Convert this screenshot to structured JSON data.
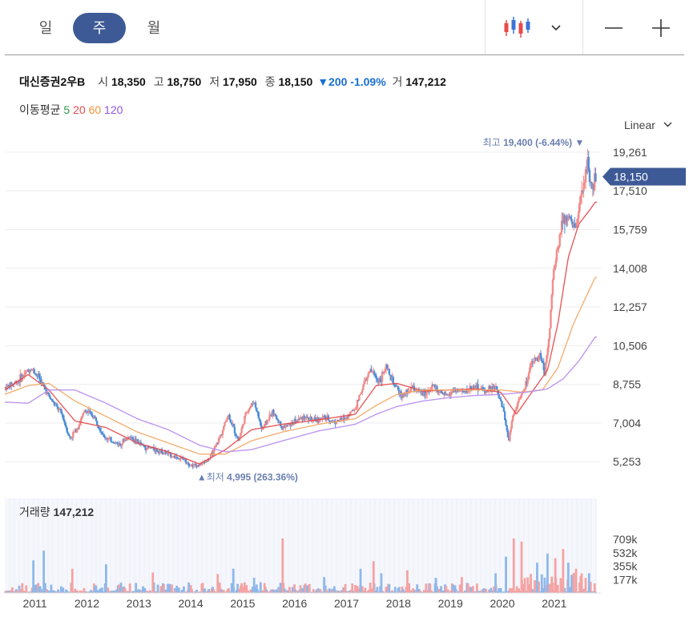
{
  "periods": [
    {
      "label": "일",
      "active": false
    },
    {
      "label": "주",
      "active": true
    },
    {
      "label": "월",
      "active": false
    }
  ],
  "toolbar": {
    "chart_type_icon": "candlestick-icon",
    "dropdown_icon": "chevron-down-icon",
    "zoom_out_icon": "minus-icon",
    "zoom_in_icon": "plus-icon"
  },
  "quote": {
    "name": "대신증권2우B",
    "open_label": "시",
    "open": "18,350",
    "high_label": "고",
    "high": "18,750",
    "low_label": "저",
    "low": "17,950",
    "close_label": "종",
    "close": "18,150",
    "change": "200",
    "change_pct": "-1.09%",
    "volume_label": "거",
    "volume": "147,212"
  },
  "moving_average": {
    "label": "이동평균",
    "periods": [
      "5",
      "20",
      "60",
      "120"
    ]
  },
  "scale": {
    "label": "Linear"
  },
  "colors": {
    "up": "#f28b8b",
    "down": "#4f8fd8",
    "ma5": "#2e9b4a",
    "ma20": "#e24b4b",
    "ma60": "#f2a766",
    "ma120": "#b78cf0",
    "accent": "#3d5a96"
  },
  "chart_data": {
    "type": "line",
    "price_axis_ticks": [
      "19,261",
      "17,510",
      "15,759",
      "14,008",
      "12,257",
      "10,506",
      "8,755",
      "7,004",
      "5,253"
    ],
    "price_axis_values": [
      19261,
      17510,
      15759,
      14008,
      12257,
      10506,
      8755,
      7004,
      5253
    ],
    "ylim": [
      4500,
      19800
    ],
    "x_tick_labels": [
      "2011",
      "2012",
      "2013",
      "2014",
      "2015",
      "2016",
      "2017",
      "2018",
      "2019",
      "2020",
      "2021"
    ],
    "x_tick_years": [
      2011,
      2012,
      2013,
      2014,
      2015,
      2016,
      2017,
      2018,
      2019,
      2020,
      2021
    ],
    "xlim": [
      2010.45,
      2021.85
    ],
    "current_price_label": "18,150",
    "current_price": 18150,
    "high_marker": {
      "label": "최고",
      "value": "19,400 (-6.44%)",
      "price": 19400,
      "year": 2021.67
    },
    "low_marker": {
      "label": "최저",
      "value": "4,995 (263.36%)",
      "price": 4995,
      "year": 2014.15
    },
    "series": [
      {
        "name": "",
        "x": [
          2010.45,
          2010.7,
          2010.95,
          2011.1,
          2011.3,
          2011.55,
          2011.7,
          2011.85,
          2012.0,
          2012.2,
          2012.35,
          2012.5,
          2012.65,
          2012.85,
          2013.0,
          2013.15,
          2013.3,
          2013.5,
          2013.7,
          2013.9,
          2014.05,
          2014.2,
          2014.4,
          2014.6,
          2014.75,
          2014.95,
          2015.1,
          2015.25,
          2015.4,
          2015.6,
          2015.8,
          2016.0,
          2016.2,
          2016.4,
          2016.6,
          2016.8,
          2017.0,
          2017.2,
          2017.35,
          2017.5,
          2017.65,
          2017.8,
          2017.95,
          2018.1,
          2018.3,
          2018.5,
          2018.7,
          2018.9,
          2019.1,
          2019.3,
          2019.5,
          2019.7,
          2019.9,
          2020.05,
          2020.15,
          2020.22,
          2020.3,
          2020.45,
          2020.6,
          2020.75,
          2020.85,
          2020.95,
          2021.0,
          2021.1,
          2021.2,
          2021.3,
          2021.45,
          2021.6,
          2021.67,
          2021.75,
          2021.82
        ],
        "y": [
          8600,
          8900,
          9500,
          9100,
          8200,
          7400,
          6300,
          6800,
          7600,
          7200,
          6400,
          6200,
          6050,
          6400,
          6150,
          5900,
          5850,
          5700,
          5500,
          5350,
          5100,
          5100,
          5400,
          6400,
          7400,
          6200,
          7500,
          8000,
          6700,
          7500,
          6800,
          7000,
          7300,
          7100,
          7250,
          7050,
          7200,
          7700,
          8700,
          9400,
          8900,
          9500,
          8700,
          8200,
          8600,
          8300,
          8700,
          8200,
          8500,
          8400,
          8700,
          8450,
          8600,
          7600,
          6200,
          7200,
          7800,
          8500,
          9700,
          10100,
          9300,
          11500,
          13500,
          15000,
          16500,
          16200,
          15900,
          17800,
          19000,
          17400,
          18150
        ]
      },
      {
        "name": "",
        "x": [
          2010.45,
          2010.9,
          2011.3,
          2011.8,
          2012.4,
          2013.0,
          2013.6,
          2014.2,
          2014.7,
          2015.2,
          2015.8,
          2016.5,
          2017.2,
          2017.6,
          2018.0,
          2018.5,
          2019.0,
          2019.5,
          2020.0,
          2020.3,
          2020.6,
          2020.9,
          2021.1,
          2021.3,
          2021.5,
          2021.7,
          2021.82
        ],
        "y": [
          8500,
          9200,
          8500,
          7100,
          6800,
          6100,
          5700,
          5150,
          5800,
          6700,
          6950,
          7150,
          7400,
          8700,
          8800,
          8450,
          8500,
          8550,
          8400,
          7400,
          8400,
          9400,
          11500,
          14500,
          16000,
          16600,
          17000
        ]
      },
      {
        "name": "",
        "x": [
          2010.45,
          2010.9,
          2011.3,
          2011.8,
          2012.4,
          2013.0,
          2013.6,
          2014.2,
          2014.7,
          2015.2,
          2015.8,
          2016.5,
          2017.2,
          2017.6,
          2018.0,
          2018.5,
          2019.0,
          2019.5,
          2020.0,
          2020.4,
          2020.8,
          2021.1,
          2021.4,
          2021.82
        ],
        "y": [
          8300,
          8700,
          8800,
          8000,
          7300,
          6600,
          6100,
          5600,
          5600,
          6200,
          6600,
          6950,
          7200,
          7800,
          8300,
          8500,
          8500,
          8500,
          8500,
          8400,
          8500,
          9500,
          11500,
          13600
        ]
      },
      {
        "name": "",
        "x": [
          2010.45,
          2010.9,
          2011.3,
          2011.8,
          2012.4,
          2013.0,
          2013.6,
          2014.2,
          2014.7,
          2015.2,
          2015.8,
          2016.5,
          2017.2,
          2017.6,
          2018.0,
          2018.5,
          2019.0,
          2019.5,
          2020.0,
          2020.5,
          2020.9,
          2021.2,
          2021.5,
          2021.82
        ],
        "y": [
          7950,
          7900,
          8500,
          8500,
          7900,
          7200,
          6700,
          6000,
          5700,
          5800,
          6200,
          6650,
          6950,
          7400,
          7750,
          8000,
          8150,
          8250,
          8300,
          8400,
          8550,
          9000,
          9800,
          10900
        ]
      }
    ],
    "volume": {
      "label": "거래량",
      "value": "147,212",
      "axis_ticks": [
        "709k",
        "532k",
        "355k",
        "177k"
      ],
      "axis_values": [
        709000,
        532000,
        355000,
        177000
      ],
      "ylim": [
        0,
        900000
      ],
      "spikes": [
        {
          "x": 2011.0,
          "y": 430000,
          "dir": "down"
        },
        {
          "x": 2011.2,
          "y": 560000,
          "dir": "down"
        },
        {
          "x": 2011.75,
          "y": 320000,
          "dir": "up"
        },
        {
          "x": 2012.4,
          "y": 380000,
          "dir": "down"
        },
        {
          "x": 2013.3,
          "y": 270000,
          "dir": "up"
        },
        {
          "x": 2014.55,
          "y": 250000,
          "dir": "up"
        },
        {
          "x": 2014.85,
          "y": 320000,
          "dir": "down"
        },
        {
          "x": 2015.25,
          "y": 200000,
          "dir": "down"
        },
        {
          "x": 2015.8,
          "y": 720000,
          "dir": "up"
        },
        {
          "x": 2016.6,
          "y": 210000,
          "dir": "down"
        },
        {
          "x": 2017.3,
          "y": 320000,
          "dir": "down"
        },
        {
          "x": 2017.55,
          "y": 420000,
          "dir": "up"
        },
        {
          "x": 2017.7,
          "y": 260000,
          "dir": "down"
        },
        {
          "x": 2018.2,
          "y": 300000,
          "dir": "up"
        },
        {
          "x": 2018.75,
          "y": 200000,
          "dir": "down"
        },
        {
          "x": 2019.25,
          "y": 210000,
          "dir": "up"
        },
        {
          "x": 2019.9,
          "y": 260000,
          "dir": "down"
        },
        {
          "x": 2020.1,
          "y": 480000,
          "dir": "down"
        },
        {
          "x": 2020.25,
          "y": 720000,
          "dir": "up"
        },
        {
          "x": 2020.4,
          "y": 680000,
          "dir": "up"
        },
        {
          "x": 2020.7,
          "y": 400000,
          "dir": "down"
        },
        {
          "x": 2020.9,
          "y": 520000,
          "dir": "down"
        },
        {
          "x": 2021.05,
          "y": 460000,
          "dir": "up"
        },
        {
          "x": 2021.2,
          "y": 580000,
          "dir": "up"
        },
        {
          "x": 2021.3,
          "y": 400000,
          "dir": "down"
        },
        {
          "x": 2021.45,
          "y": 320000,
          "dir": "up"
        },
        {
          "x": 2021.7,
          "y": 260000,
          "dir": "down"
        }
      ]
    }
  }
}
